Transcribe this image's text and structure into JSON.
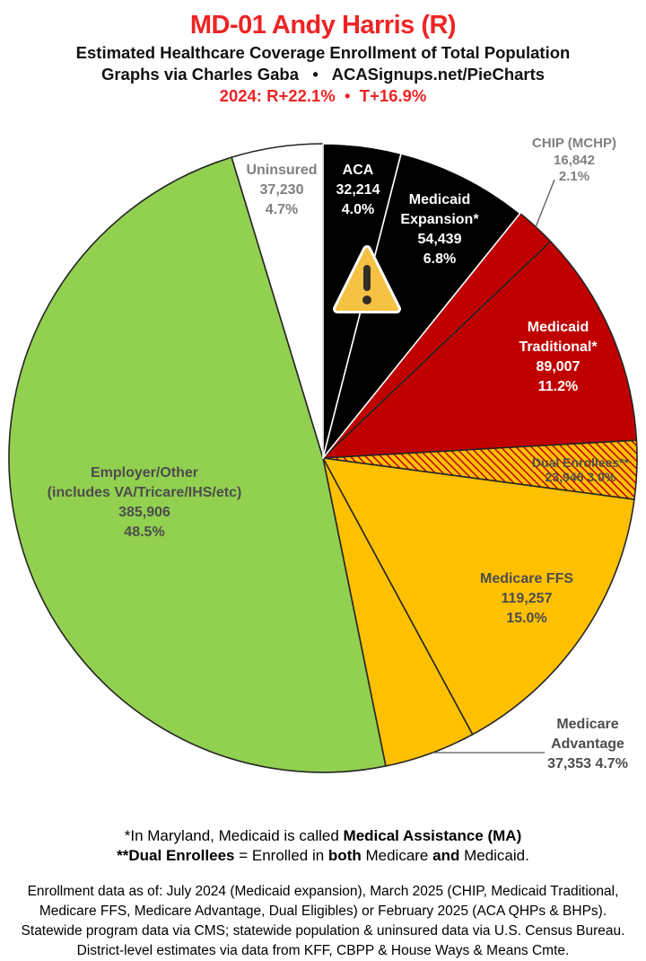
{
  "header": {
    "title": "MD-01 Andy Harris (R)",
    "subtitle": "Estimated Healthcare Coverage Enrollment of Total Population",
    "credit": "Graphs via Charles Gaba   •   ACASignups.net/PieCharts",
    "lean": "2024: R+22.1%  •  T+16.9%"
  },
  "palette": {
    "accent_red": "#EE2424",
    "slice_black": "#000000",
    "slice_red": "#C00000",
    "slice_gold": "#FFC000",
    "slice_green": "#92D050",
    "slice_white": "#FFFFFF",
    "outline_dark": "#262626",
    "outline_white": "#FFFFFF",
    "label_gray": "#808080",
    "label_dark": "#4D4D4D",
    "leader_gray": "#595959",
    "warning_fill": "#F6C244",
    "warning_mark": "#332D29"
  },
  "chart_data": {
    "type": "pie",
    "start_angle_deg": 0,
    "direction": "clockwise",
    "title": "Estimated Healthcare Coverage Enrollment of Total Population",
    "slices": [
      {
        "id": "aca",
        "label": "ACA",
        "value": 32214,
        "enrollment": "32,214",
        "pct": 4.0,
        "pct_label": "4.0%",
        "color": "#000000",
        "stroke": "#FFFFFF",
        "text_color": "#FFFFFF"
      },
      {
        "id": "medicaid-expansion",
        "label": "Medicaid Expansion*",
        "value": 54439,
        "enrollment": "54,439",
        "pct": 6.8,
        "pct_label": "6.8%",
        "color": "#000000",
        "stroke": "#FFFFFF",
        "text_color": "#FFFFFF"
      },
      {
        "id": "chip",
        "label": "CHIP (MCHP)",
        "value": 16842,
        "enrollment": "16,842",
        "pct": 2.1,
        "pct_label": "2.1%",
        "color": "#C00000",
        "stroke": "#262626",
        "text_color": "#808080",
        "label_outside": true
      },
      {
        "id": "medicaid-traditional",
        "label": "Medicaid Traditional*",
        "value": 89007,
        "enrollment": "89,007",
        "pct": 11.2,
        "pct_label": "11.2%",
        "color": "#C00000",
        "stroke": "#262626",
        "text_color": "#FFFFFF"
      },
      {
        "id": "dual-enrollees",
        "label": "Dual Enrollees**",
        "value": 23946,
        "enrollment": "23,946",
        "pct": 3.0,
        "pct_label": "3.0%",
        "color": "hatch",
        "stroke": "#262626",
        "text_color": "#4D4D4D"
      },
      {
        "id": "medicare-ffs",
        "label": "Medicare FFS",
        "value": 119257,
        "enrollment": "119,257",
        "pct": 15.0,
        "pct_label": "15.0%",
        "color": "#FFC000",
        "stroke": "#262626",
        "text_color": "#4D4D4D"
      },
      {
        "id": "medicare-advantage",
        "label": "Medicare Advantage",
        "value": 37353,
        "enrollment": "37,353",
        "pct": 4.7,
        "pct_label": "4.7%",
        "color": "#FFC000",
        "stroke": "#262626",
        "text_color": "#4D4D4D",
        "label_outside": true
      },
      {
        "id": "employer-other",
        "label": "Employer/Other",
        "sublabel": "(includes VA/Tricare/IHS/etc)",
        "value": 385906,
        "enrollment": "385,906",
        "pct": 48.5,
        "pct_label": "48.5%",
        "color": "#92D050",
        "stroke": "#262626",
        "text_color": "#4D4D4D"
      },
      {
        "id": "uninsured",
        "label": "Uninsured",
        "value": 37230,
        "enrollment": "37,230",
        "pct": 4.7,
        "pct_label": "4.7%",
        "color": "#FFFFFF",
        "stroke": "#262626",
        "text_color": "#808080"
      }
    ]
  },
  "footnotes": {
    "note1_prefix": "*In Maryland, Medicaid is called ",
    "note1_bold": "Medical Assistance (MA)",
    "note2_bold1": "**Dual Enrollees",
    "note2_mid1": " = Enrolled in ",
    "note2_bold2": "both",
    "note2_mid2": " Medicare ",
    "note2_bold3": "and",
    "note2_suffix": " Medicaid."
  },
  "source": {
    "lines": [
      "Enrollment data as of: July 2024 (Medicaid expansion), March 2025 (CHIP, Medicaid Traditional,",
      "Medicare FFS, Medicare Advantage, Dual Eligibles) or February 2025 (ACA QHPs & BHPs).",
      "Statewide program data via CMS; statewide population & uninsured data via U.S. Census Bureau.",
      "District-level estimates via data from KFF, CBPP & House Ways & Means Cmte."
    ]
  }
}
